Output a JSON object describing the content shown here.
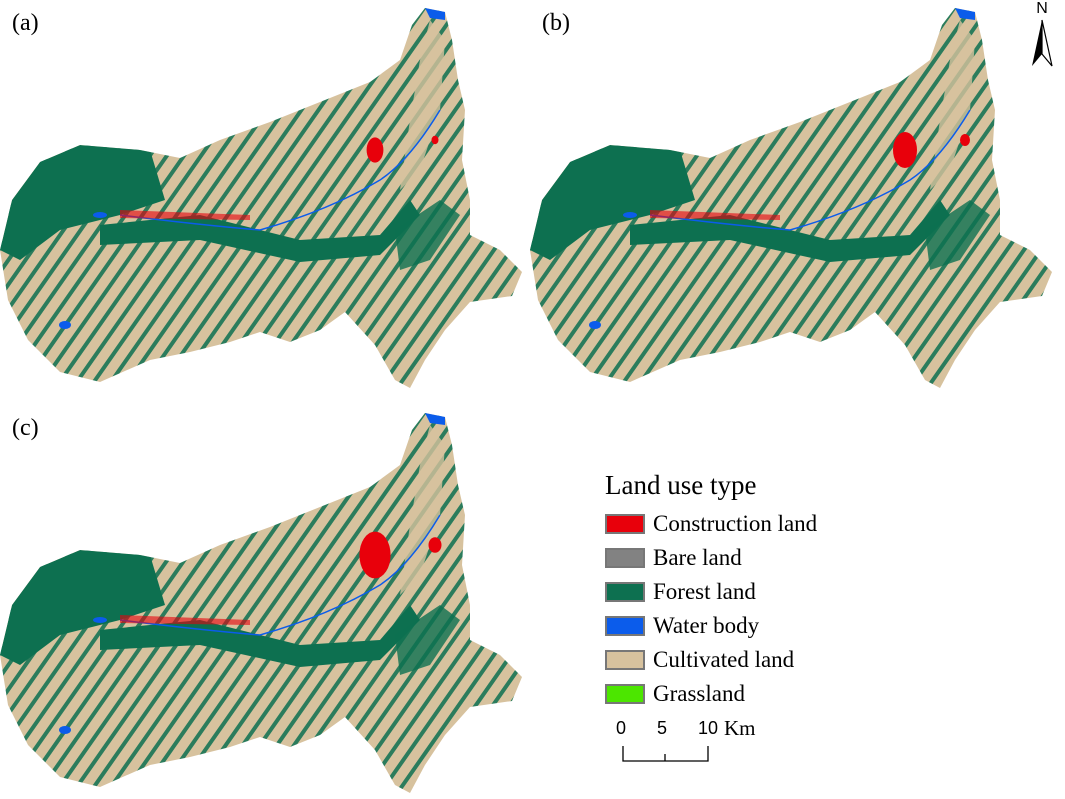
{
  "panels": [
    {
      "label": "(a)",
      "city_scale": 0.7
    },
    {
      "label": "(b)",
      "city_scale": 1.0
    },
    {
      "label": "(c)",
      "city_scale": 1.3
    }
  ],
  "legend": {
    "title": "Land use type",
    "items": [
      {
        "label": "Construction land",
        "color": "#E8000B"
      },
      {
        "label": "Bare land",
        "color": "#828282"
      },
      {
        "label": "Forest land",
        "color": "#0D7050"
      },
      {
        "label": "Water body",
        "color": "#0B5CEB"
      },
      {
        "label": "Cultivated land",
        "color": "#D7C29E"
      },
      {
        "label": "Grassland",
        "color": "#4CE600"
      }
    ]
  },
  "scale_bar": {
    "ticks": [
      "0",
      "5",
      "10"
    ],
    "unit": "Km"
  },
  "north_arrow": {
    "label": "N"
  }
}
